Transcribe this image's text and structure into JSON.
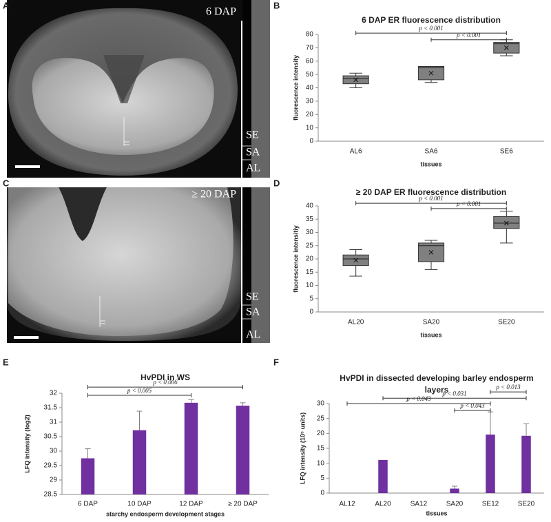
{
  "panels": [
    "A",
    "B",
    "C",
    "D",
    "E",
    "F"
  ],
  "images": [
    {
      "label": "6 DAP",
      "layers": [
        "SE",
        "SA",
        "AL"
      ]
    },
    {
      "label": "≥ 20 DAP",
      "layers": [
        "SE",
        "SA",
        "AL"
      ]
    }
  ],
  "chart_data": [
    {
      "type": "box",
      "title": "6 DAP ER fluorescence distribution",
      "x_label": "tissues",
      "y_label": "fluorescence intensity",
      "categories": [
        "AL6",
        "SA6",
        "SE6"
      ],
      "color": "#808080",
      "boxes": [
        {
          "low": 40,
          "q1": 43,
          "median": 47,
          "q3": 49,
          "high": 51,
          "mean": 46
        },
        {
          "low": 44,
          "q1": 46,
          "median": 55,
          "q3": 56,
          "high": 56,
          "mean": 51
        },
        {
          "low": 64,
          "q1": 66,
          "median": 73,
          "q3": 74,
          "high": 76,
          "mean": 70
        }
      ],
      "ylim": [
        0,
        80
      ],
      "yticks": [
        0,
        10,
        20,
        30,
        40,
        50,
        60,
        70,
        80
      ],
      "brackets": [
        {
          "from": "AL6",
          "to": "SE6",
          "y": 81,
          "label": "p < 0.001"
        },
        {
          "from": "SA6",
          "to": "SE6",
          "y": 76,
          "label": "p < 0.001"
        }
      ]
    },
    {
      "type": "box",
      "title": "≥ 20 DAP ER fluorescence distribution",
      "x_label": "tissues",
      "y_label": "fluorescence intensitiy",
      "categories": [
        "AL20",
        "SA20",
        "SE20"
      ],
      "color": "#808080",
      "boxes": [
        {
          "low": 13.5,
          "q1": 17.5,
          "median": 20,
          "q3": 21.5,
          "high": 23.5,
          "mean": 19.5
        },
        {
          "low": 16,
          "q1": 19,
          "median": 25,
          "q3": 26,
          "high": 27,
          "mean": 22.5
        },
        {
          "low": 26,
          "q1": 31.5,
          "median": 33.5,
          "q3": 36,
          "high": 38,
          "mean": 33.5
        }
      ],
      "ylim": [
        0,
        40
      ],
      "yticks": [
        0,
        5,
        10,
        15,
        20,
        25,
        30,
        35,
        40
      ],
      "brackets": [
        {
          "from": "AL20",
          "to": "SE20",
          "y": 41,
          "label": "p < 0.001"
        },
        {
          "from": "SA20",
          "to": "SE20",
          "y": 39,
          "label": "p < 0.001"
        }
      ]
    },
    {
      "type": "bar",
      "title": "HvPDI in WS",
      "x_label": "starchy endosperm development stages",
      "y_label": "LFQ intensity (log2)",
      "categories": [
        "6 DAP",
        "10 DAP",
        "12 DAP",
        "≥ 20 DAP"
      ],
      "color": "#7030a0",
      "values": [
        29.75,
        30.72,
        31.67,
        31.57
      ],
      "errors": [
        0.33,
        0.66,
        0.11,
        0.1
      ],
      "ylim": [
        28.5,
        32
      ],
      "yticks": [
        28.5,
        29,
        29.5,
        30,
        30.5,
        31,
        31.5,
        32
      ],
      "brackets": [
        {
          "from": "6 DAP",
          "to": "≥ 20 DAP",
          "y": 32.21,
          "label": "p < 0.006"
        },
        {
          "from": "6 DAP",
          "to": "12 DAP",
          "y": 31.93,
          "label": "p < 0.005"
        }
      ]
    },
    {
      "type": "bar",
      "title": "HvPDI in dissected developing barley endosperm layers",
      "x_label": "tissues",
      "y_label": "LFQ intensity (10⁵ units)",
      "categories": [
        "AL12",
        "AL20",
        "SA12",
        "SA20",
        "SE12",
        "SE20"
      ],
      "color": "#7030a0",
      "values": [
        0,
        11.1,
        0,
        1.5,
        19.6,
        19.2
      ],
      "errors": [
        0,
        0,
        0,
        0.8,
        7.6,
        4
      ],
      "ylim": [
        0,
        30
      ],
      "yticks": [
        0,
        5,
        10,
        15,
        20,
        25,
        30
      ],
      "brackets": [
        {
          "from": "SE12",
          "to": "SE20",
          "y": 33.9,
          "label": "p < 0.013"
        },
        {
          "from": "AL20",
          "to": "SE20",
          "y": 31.8,
          "label": "p < 0.031"
        },
        {
          "from": "AL12",
          "to": "SE12",
          "y": 30,
          "label": "p < 0.043"
        },
        {
          "from": "SA20",
          "to": "SE12",
          "y": 27.7,
          "label": "p < 0.043"
        }
      ]
    }
  ]
}
